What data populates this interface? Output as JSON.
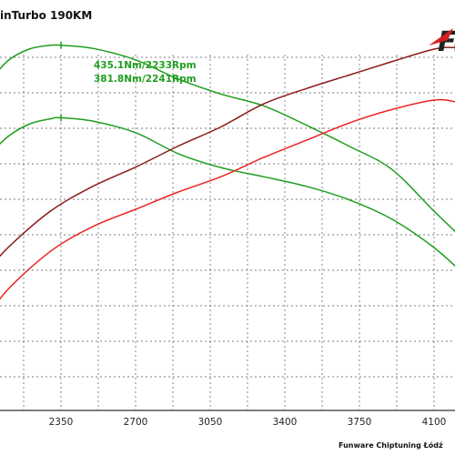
{
  "chart_data": {
    "type": "line",
    "title": "inTurbo 190KM",
    "footer": "Funware Chiptuning Łódź",
    "logo_text": "F",
    "x_ticks": [
      2350,
      2700,
      3050,
      3400,
      3750,
      4100
    ],
    "xlim": [
      2000,
      4250
    ],
    "ylim": [
      0,
      100
    ],
    "grid": true,
    "annotations": [
      {
        "text": "435.1Nm/2233Rpm",
        "color": "#1f9e1f"
      },
      {
        "text": "381.8Nm/2241Rpm",
        "color": "#1f9e1f"
      }
    ],
    "series": [
      {
        "color": "#1f9e1f",
        "x": [
          2000,
          2100,
          2200,
          2300,
          2350,
          2500,
          2700,
          2900,
          3100,
          3300,
          3500,
          3700,
          3900,
          4100,
          4250
        ],
        "y": [
          85,
          91.2,
          94.3,
          95.3,
          95.3,
          94.5,
          91.5,
          86.5,
          82.6,
          79.5,
          74.5,
          69,
          63,
          52,
          44
        ]
      },
      {
        "color": "#1f9e1f",
        "x": [
          2000,
          2100,
          2200,
          2300,
          2350,
          2500,
          2700,
          2900,
          3100,
          3300,
          3500,
          3700,
          3900,
          4100,
          4250
        ],
        "y": [
          66,
          71.4,
          74.7,
          76.1,
          76.4,
          75.5,
          72.5,
          67,
          63.4,
          61,
          58.5,
          55,
          50,
          42.5,
          35
        ]
      },
      {
        "color": "#8b1a1a",
        "x": [
          2000,
          2100,
          2300,
          2500,
          2700,
          2900,
          3100,
          3300,
          3500,
          3700,
          3900,
          4100,
          4200,
          4250
        ],
        "y": [
          36,
          42.4,
          52,
          58.5,
          63.5,
          69,
          74,
          80,
          84,
          87.5,
          91,
          94.3,
          94.7,
          94
        ]
      },
      {
        "color": "#ee2222",
        "x": [
          2000,
          2100,
          2300,
          2500,
          2700,
          2900,
          3100,
          3300,
          3500,
          3700,
          3900,
          4100,
          4200,
          4250
        ],
        "y": [
          24,
          31.5,
          41.5,
          48,
          52.5,
          57,
          61,
          66,
          70.5,
          75,
          78.5,
          81,
          80.5,
          79
        ]
      }
    ]
  }
}
